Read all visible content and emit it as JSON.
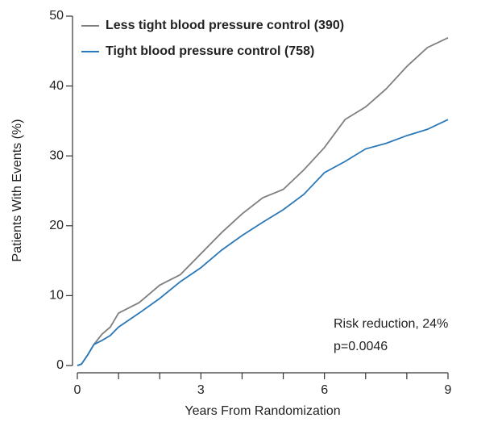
{
  "chart_data": {
    "type": "line",
    "xlabel": "Years From Randomization",
    "ylabel": "Patients With Events (%)",
    "x": [
      0,
      0.1,
      0.25,
      0.4,
      0.6,
      0.8,
      1,
      1.5,
      2,
      2.5,
      3,
      3.5,
      4,
      4.5,
      5,
      5.5,
      6,
      6.5,
      7,
      7.5,
      8,
      8.5,
      9
    ],
    "series": [
      {
        "name": "Less tight blood pressure control (390)",
        "color": "#7f7f7f",
        "values": [
          0,
          0.2,
          1.5,
          3,
          4.5,
          5.5,
          7.5,
          9,
          11.5,
          13,
          16,
          19,
          21.7,
          24,
          25.2,
          28,
          31.2,
          35.2,
          37,
          39.6,
          42.8,
          45.5,
          46.9
        ]
      },
      {
        "name": "Tight blood pressure control (758)",
        "color": "#2a78b8",
        "values": [
          0,
          0.2,
          1.5,
          3,
          3.6,
          4.3,
          5.5,
          7.5,
          9.6,
          12,
          14,
          16.5,
          18.6,
          20.5,
          22.3,
          24.5,
          27.6,
          29.2,
          31,
          31.8,
          32.9,
          33.8,
          35.2
        ]
      }
    ],
    "xlim": [
      0,
      9
    ],
    "xticks": [
      0,
      3,
      6,
      9
    ],
    "xminor_ticks": [
      1,
      2,
      4,
      5,
      7,
      8
    ],
    "ylim": [
      0,
      50
    ],
    "yticks": [
      0,
      10,
      20,
      30,
      40,
      50
    ],
    "legend": "upper left",
    "annotations": [
      "Risk reduction, 24%",
      "p=0.0046"
    ]
  }
}
